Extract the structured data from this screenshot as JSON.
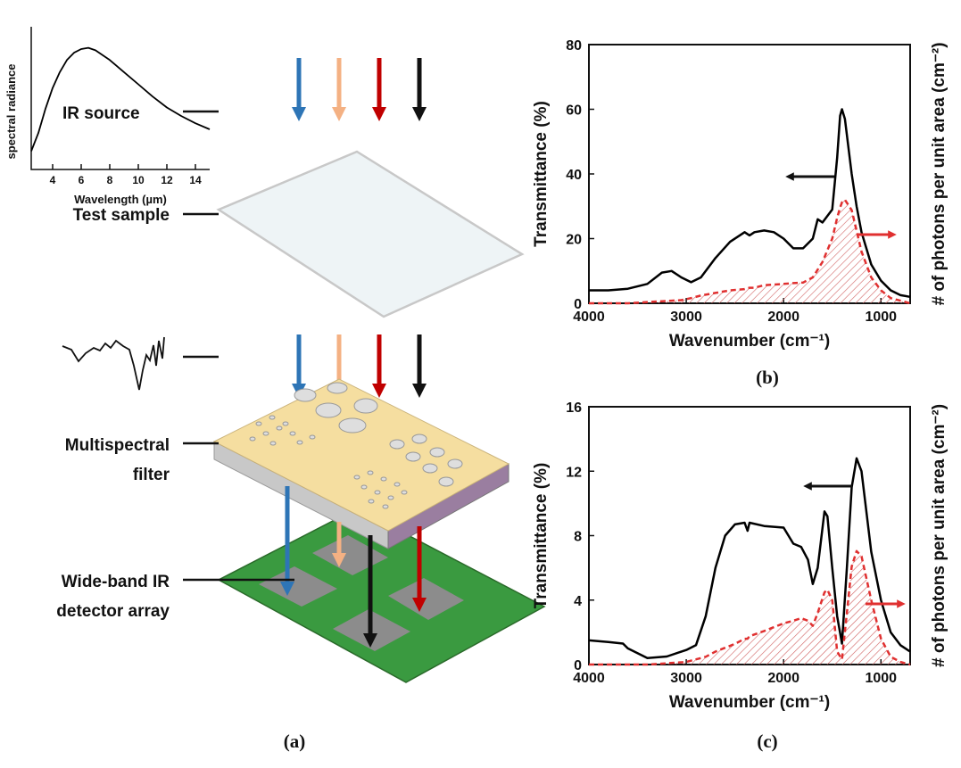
{
  "figure": {
    "captions": [
      "(a)",
      "(b)",
      "(c)"
    ],
    "labels": {
      "ir_source": "IR source",
      "test_sample": "Test sample",
      "filter": [
        "Multispectral",
        "filter"
      ],
      "detector": [
        "Wide-band IR",
        "detector array"
      ]
    }
  },
  "chart_data": [
    {
      "type": "line",
      "xlabel": "Wavelength (µm)",
      "ylabel": "spectral radiance",
      "x": [
        2.5,
        3,
        3.5,
        4,
        4.5,
        5,
        5.5,
        6,
        6.5,
        7,
        8,
        9,
        10,
        11,
        12,
        13,
        14,
        15
      ],
      "series": [
        {
          "color": "#000000",
          "values": [
            0.15,
            0.3,
            0.5,
            0.67,
            0.8,
            0.9,
            0.96,
            0.99,
            1.0,
            0.98,
            0.9,
            0.8,
            0.7,
            0.6,
            0.51,
            0.44,
            0.38,
            0.33
          ]
        }
      ],
      "xlim": [
        2.5,
        15
      ],
      "ylim": [
        0,
        1.1
      ],
      "xticks": [
        4,
        6,
        8,
        10,
        12,
        14
      ]
    },
    {
      "type": "line",
      "xlabel": "Wavenumber (cm⁻¹)",
      "ylabel": "Transmittance (%)",
      "y2label": "# of photons per unit area (cm⁻²)",
      "x": [
        4000,
        3800,
        3600,
        3400,
        3250,
        3150,
        3050,
        2950,
        2850,
        2700,
        2550,
        2400,
        2350,
        2300,
        2200,
        2100,
        2000,
        1900,
        1800,
        1700,
        1650,
        1600,
        1500,
        1450,
        1420,
        1400,
        1370,
        1300,
        1250,
        1200,
        1100,
        1000,
        900,
        800,
        700
      ],
      "series": [
        {
          "color": "#000000",
          "values": [
            4,
            4,
            4.5,
            6,
            9.5,
            10,
            8,
            6.5,
            8,
            14,
            19,
            22,
            21,
            22,
            22.5,
            22,
            20,
            17,
            17,
            20,
            26,
            25,
            29,
            45,
            58,
            60,
            57,
            40,
            30,
            22,
            12,
            7,
            4,
            2.5,
            2
          ]
        },
        {
          "color": "#e03030",
          "axis": "y2",
          "values": [
            0,
            0,
            0,
            0.005,
            0.008,
            0.01,
            0.012,
            0.02,
            0.03,
            0.04,
            0.05,
            0.055,
            0.06,
            0.06,
            0.07,
            0.072,
            0.075,
            0.078,
            0.08,
            0.1,
            0.13,
            0.16,
            0.25,
            0.33,
            0.37,
            0.39,
            0.4,
            0.36,
            0.28,
            0.2,
            0.1,
            0.05,
            0.02,
            0.01,
            0
          ]
        }
      ],
      "xlim": [
        4000,
        700
      ],
      "ylim": [
        0,
        80
      ],
      "y2lim": [
        0,
        1
      ],
      "xticks": [
        4000,
        3000,
        2000,
        1000
      ],
      "yticks": [
        0,
        20,
        40,
        60,
        80
      ]
    },
    {
      "type": "line",
      "xlabel": "Wavenumber (cm⁻¹)",
      "ylabel": "Transmittance (%)",
      "y2label": "# of photons per unit area (cm⁻²)",
      "x": [
        4000,
        3800,
        3650,
        3600,
        3400,
        3200,
        3000,
        2900,
        2800,
        2700,
        2600,
        2500,
        2400,
        2370,
        2350,
        2200,
        2000,
        1900,
        1820,
        1750,
        1700,
        1650,
        1580,
        1550,
        1500,
        1450,
        1400,
        1350,
        1300,
        1250,
        1200,
        1100,
        1000,
        900,
        800,
        700
      ],
      "series": [
        {
          "color": "#000000",
          "values": [
            1.5,
            1.4,
            1.3,
            1.0,
            0.4,
            0.5,
            0.9,
            1.2,
            3,
            6,
            8,
            8.7,
            8.8,
            8.3,
            8.8,
            8.6,
            8.5,
            7.5,
            7.3,
            6.5,
            5,
            6,
            9.5,
            9.2,
            6,
            3,
            1.3,
            6,
            11,
            12.8,
            12,
            7,
            4,
            2,
            1.2,
            0.8
          ]
        },
        {
          "color": "#e03030",
          "axis": "y2",
          "values": [
            0,
            0,
            0,
            0,
            0,
            0.005,
            0.01,
            0.02,
            0.03,
            0.05,
            0.065,
            0.08,
            0.1,
            0.1,
            0.11,
            0.13,
            0.16,
            0.17,
            0.18,
            0.17,
            0.15,
            0.2,
            0.28,
            0.29,
            0.25,
            0.05,
            0.02,
            0.2,
            0.38,
            0.44,
            0.42,
            0.25,
            0.1,
            0.03,
            0.01,
            0
          ]
        }
      ],
      "xlim": [
        4000,
        700
      ],
      "ylim": [
        0,
        16
      ],
      "y2lim": [
        0,
        1
      ],
      "xticks": [
        4000,
        3000,
        2000,
        1000
      ],
      "yticks": [
        0,
        4,
        8,
        12,
        16
      ]
    }
  ]
}
